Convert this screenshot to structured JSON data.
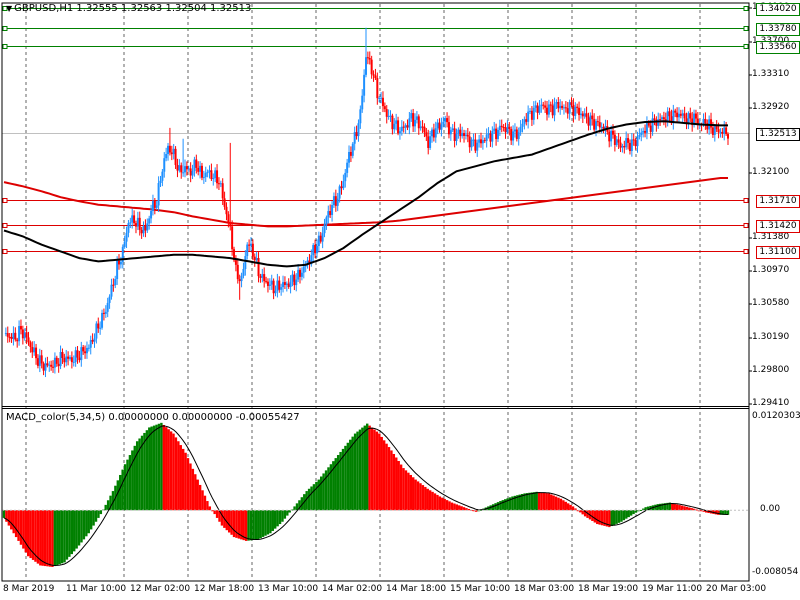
{
  "header": {
    "symbol_line": "GBPUSD,H1  1.32555 1.32563 1.32504 1.32513",
    "triangle_icon": "▼"
  },
  "macd": {
    "title": "MACD_color(5,34,5) 0.00000000 0.00000000 -0.00055427",
    "axis_labels": [
      {
        "text": "0.0120303",
        "value": 0.0120303
      },
      {
        "text": "0.00",
        "value": 0.0
      },
      {
        "text": "-0.008054",
        "value": -0.008054
      }
    ]
  },
  "price_axis_labels": [
    "1.34000",
    "1.33700",
    "1.33310",
    "1.32920",
    "1.32100",
    "1.31380",
    "1.30970",
    "1.30580",
    "1.30190",
    "1.29800",
    "1.29410"
  ],
  "horizontal_levels": [
    {
      "label": "1.34020",
      "price": 1.3402,
      "color": "#008000"
    },
    {
      "label": "1.33780",
      "price": 1.3378,
      "color": "#008000"
    },
    {
      "label": "1.33560",
      "price": 1.3356,
      "color": "#008000"
    },
    {
      "label": "1.31710",
      "price": 1.3171,
      "color": "#dd0000"
    },
    {
      "label": "1.31420",
      "price": 1.3142,
      "color": "#dd0000"
    },
    {
      "label": "1.31100",
      "price": 1.311,
      "color": "#dd0000"
    }
  ],
  "current_price": {
    "label": "1.32513",
    "price": 1.32513
  },
  "time_labels": [
    "8 Mar 2019",
    "11 Mar 10:00",
    "12 Mar 02:00",
    "12 Mar 18:00",
    "13 Mar 10:00",
    "14 Mar 02:00",
    "14 Mar 18:00",
    "15 Mar 10:00",
    "18 Mar 03:00",
    "18 Mar 19:00",
    "19 Mar 11:00",
    "20 Mar 03:00"
  ],
  "colors": {
    "bull": "#1e90ff",
    "bear": "#ff0000",
    "ma_fast": "#000000",
    "ma_slow": "#dd0000",
    "hist_up": "#008000",
    "hist_down": "#ff0000"
  },
  "chart_data": {
    "type": "candlestick",
    "symbol": "GBPUSD",
    "timeframe": "H1",
    "ylim": [
      1.2941,
      1.34
    ],
    "ohlc_keypoints": [
      [
        0,
        1.3012
      ],
      [
        3,
        1.3008
      ],
      [
        6,
        1.3006
      ],
      [
        9,
        1.3016
      ],
      [
        12,
        1.3006
      ],
      [
        15,
        1.2992
      ],
      [
        18,
        1.298
      ],
      [
        21,
        1.2973
      ],
      [
        24,
        1.2973
      ],
      [
        27,
        1.2975
      ],
      [
        30,
        1.2982
      ],
      [
        33,
        1.2982
      ],
      [
        36,
        1.298
      ],
      [
        39,
        1.2985
      ],
      [
        42,
        1.299
      ],
      [
        45,
        1.2995
      ],
      [
        48,
        1.301
      ],
      [
        51,
        1.3025
      ],
      [
        54,
        1.304
      ],
      [
        57,
        1.3065
      ],
      [
        60,
        1.309
      ],
      [
        63,
        1.311
      ],
      [
        66,
        1.3145
      ],
      [
        69,
        1.3148
      ],
      [
        72,
        1.3138
      ],
      [
        75,
        1.3135
      ],
      [
        78,
        1.316
      ],
      [
        81,
        1.317
      ],
      [
        84,
        1.321
      ],
      [
        87,
        1.3235
      ],
      [
        90,
        1.3225
      ],
      [
        93,
        1.3205
      ],
      [
        96,
        1.321
      ],
      [
        99,
        1.3205
      ],
      [
        102,
        1.3215
      ],
      [
        105,
        1.32
      ],
      [
        108,
        1.3205
      ],
      [
        111,
        1.32
      ],
      [
        114,
        1.3195
      ],
      [
        117,
        1.3165
      ],
      [
        120,
        1.3135
      ],
      [
        123,
        1.3085
      ],
      [
        126,
        1.3075
      ],
      [
        129,
        1.312
      ],
      [
        132,
        1.311
      ],
      [
        135,
        1.3085
      ],
      [
        138,
        1.3075
      ],
      [
        141,
        1.307
      ],
      [
        144,
        1.3065
      ],
      [
        147,
        1.307
      ],
      [
        150,
        1.307
      ],
      [
        153,
        1.3075
      ],
      [
        156,
        1.308
      ],
      [
        159,
        1.309
      ],
      [
        162,
        1.31
      ],
      [
        165,
        1.3115
      ],
      [
        168,
        1.3125
      ],
      [
        171,
        1.315
      ],
      [
        174,
        1.3165
      ],
      [
        177,
        1.3175
      ],
      [
        180,
        1.3195
      ],
      [
        183,
        1.3225
      ],
      [
        186,
        1.3245
      ],
      [
        189,
        1.3275
      ],
      [
        192,
        1.3345
      ],
      [
        195,
        1.333
      ],
      [
        198,
        1.33
      ],
      [
        201,
        1.3285
      ],
      [
        204,
        1.327
      ],
      [
        207,
        1.3262
      ],
      [
        210,
        1.3255
      ],
      [
        213,
        1.326
      ],
      [
        216,
        1.327
      ],
      [
        219,
        1.3265
      ],
      [
        222,
        1.3258
      ],
      [
        225,
        1.324
      ],
      [
        228,
        1.3255
      ],
      [
        231,
        1.326
      ],
      [
        234,
        1.3268
      ],
      [
        237,
        1.3252
      ],
      [
        240,
        1.325
      ],
      [
        243,
        1.3252
      ],
      [
        246,
        1.3245
      ],
      [
        249,
        1.3238
      ],
      [
        252,
        1.324
      ],
      [
        255,
        1.3245
      ],
      [
        258,
        1.325
      ],
      [
        261,
        1.3252
      ],
      [
        264,
        1.326
      ],
      [
        267,
        1.3255
      ],
      [
        270,
        1.325
      ],
      [
        273,
        1.3252
      ],
      [
        276,
        1.3268
      ],
      [
        279,
        1.3275
      ],
      [
        282,
        1.328
      ],
      [
        285,
        1.3285
      ],
      [
        288,
        1.328
      ],
      [
        291,
        1.3282
      ],
      [
        294,
        1.3286
      ],
      [
        297,
        1.328
      ],
      [
        300,
        1.3283
      ],
      [
        303,
        1.328
      ],
      [
        306,
        1.3275
      ],
      [
        309,
        1.327
      ],
      [
        312,
        1.3265
      ],
      [
        315,
        1.3262
      ],
      [
        318,
        1.3258
      ],
      [
        321,
        1.325
      ],
      [
        324,
        1.3245
      ],
      [
        327,
        1.3235
      ],
      [
        330,
        1.324
      ],
      [
        333,
        1.3238
      ],
      [
        336,
        1.3245
      ],
      [
        339,
        1.3255
      ],
      [
        342,
        1.326
      ],
      [
        345,
        1.3265
      ],
      [
        348,
        1.3268
      ],
      [
        351,
        1.327
      ],
      [
        354,
        1.3272
      ],
      [
        357,
        1.3275
      ],
      [
        360,
        1.3272
      ],
      [
        363,
        1.3268
      ],
      [
        366,
        1.327
      ],
      [
        369,
        1.3262
      ],
      [
        372,
        1.3265
      ],
      [
        375,
        1.3258
      ],
      [
        378,
        1.3255
      ],
      [
        381,
        1.3253
      ],
      [
        384,
        1.3252
      ]
    ],
    "ma_fast_keypoints": [
      [
        0,
        1.3135
      ],
      [
        10,
        1.3128
      ],
      [
        20,
        1.3118
      ],
      [
        30,
        1.311
      ],
      [
        40,
        1.3102
      ],
      [
        50,
        1.3098
      ],
      [
        60,
        1.31
      ],
      [
        70,
        1.3102
      ],
      [
        80,
        1.3104
      ],
      [
        90,
        1.3106
      ],
      [
        100,
        1.3106
      ],
      [
        110,
        1.3104
      ],
      [
        120,
        1.3102
      ],
      [
        130,
        1.3098
      ],
      [
        140,
        1.3094
      ],
      [
        150,
        1.3092
      ],
      [
        160,
        1.3094
      ],
      [
        170,
        1.3102
      ],
      [
        180,
        1.3114
      ],
      [
        190,
        1.313
      ],
      [
        200,
        1.3145
      ],
      [
        210,
        1.316
      ],
      [
        220,
        1.3175
      ],
      [
        230,
        1.3192
      ],
      [
        240,
        1.3206
      ],
      [
        250,
        1.3212
      ],
      [
        260,
        1.3218
      ],
      [
        270,
        1.3222
      ],
      [
        280,
        1.3226
      ],
      [
        290,
        1.3234
      ],
      [
        300,
        1.3242
      ],
      [
        310,
        1.325
      ],
      [
        320,
        1.3257
      ],
      [
        330,
        1.3262
      ],
      [
        340,
        1.3265
      ],
      [
        350,
        1.3266
      ],
      [
        360,
        1.3264
      ],
      [
        370,
        1.3262
      ],
      [
        380,
        1.3261
      ]
    ],
    "ma_slow_keypoints": [
      [
        0,
        1.3193
      ],
      [
        10,
        1.3188
      ],
      [
        20,
        1.3182
      ],
      [
        30,
        1.3175
      ],
      [
        40,
        1.317
      ],
      [
        50,
        1.3166
      ],
      [
        60,
        1.3164
      ],
      [
        70,
        1.3162
      ],
      [
        80,
        1.316
      ],
      [
        90,
        1.3157
      ],
      [
        100,
        1.3152
      ],
      [
        110,
        1.3148
      ],
      [
        120,
        1.3144
      ],
      [
        130,
        1.3142
      ],
      [
        140,
        1.314
      ],
      [
        150,
        1.314
      ],
      [
        160,
        1.3141
      ],
      [
        170,
        1.3142
      ],
      [
        180,
        1.3143
      ],
      [
        190,
        1.3144
      ],
      [
        200,
        1.3145
      ],
      [
        210,
        1.3147
      ],
      [
        220,
        1.315
      ],
      [
        230,
        1.3153
      ],
      [
        240,
        1.3156
      ],
      [
        250,
        1.3159
      ],
      [
        260,
        1.3162
      ],
      [
        270,
        1.3165
      ],
      [
        280,
        1.3168
      ],
      [
        290,
        1.3171
      ],
      [
        300,
        1.3174
      ],
      [
        310,
        1.3177
      ],
      [
        320,
        1.318
      ],
      [
        330,
        1.3183
      ],
      [
        340,
        1.3186
      ],
      [
        350,
        1.3189
      ],
      [
        360,
        1.3192
      ],
      [
        370,
        1.3195
      ],
      [
        380,
        1.3198
      ]
    ],
    "macd_keypoints": [
      [
        0,
        -0.001
      ],
      [
        5,
        -0.0035
      ],
      [
        10,
        -0.006
      ],
      [
        15,
        -0.0072
      ],
      [
        20,
        -0.0074
      ],
      [
        25,
        -0.0068
      ],
      [
        30,
        -0.005
      ],
      [
        35,
        -0.003
      ],
      [
        40,
        -0.0005
      ],
      [
        45,
        0.0025
      ],
      [
        50,
        0.006
      ],
      [
        55,
        0.009
      ],
      [
        60,
        0.0108
      ],
      [
        65,
        0.0114
      ],
      [
        70,
        0.01
      ],
      [
        75,
        0.0075
      ],
      [
        80,
        0.004
      ],
      [
        85,
        0.0005
      ],
      [
        90,
        -0.002
      ],
      [
        95,
        -0.0035
      ],
      [
        100,
        -0.004
      ],
      [
        105,
        -0.0038
      ],
      [
        110,
        -0.003
      ],
      [
        115,
        -0.0015
      ],
      [
        120,
        0.0005
      ],
      [
        125,
        0.0025
      ],
      [
        130,
        0.004
      ],
      [
        135,
        0.006
      ],
      [
        140,
        0.008
      ],
      [
        145,
        0.01
      ],
      [
        150,
        0.0113
      ],
      [
        155,
        0.01
      ],
      [
        160,
        0.0078
      ],
      [
        165,
        0.0055
      ],
      [
        170,
        0.004
      ],
      [
        175,
        0.0028
      ],
      [
        180,
        0.0018
      ],
      [
        185,
        0.001
      ],
      [
        190,
        0.0004
      ],
      [
        195,
        -0.0002
      ],
      [
        200,
        0.0005
      ],
      [
        205,
        0.0012
      ],
      [
        210,
        0.0018
      ],
      [
        215,
        0.0022
      ],
      [
        220,
        0.0024
      ],
      [
        225,
        0.0022
      ],
      [
        230,
        0.0015
      ],
      [
        235,
        0.0005
      ],
      [
        240,
        -0.0008
      ],
      [
        245,
        -0.0018
      ],
      [
        250,
        -0.0022
      ],
      [
        255,
        -0.0015
      ],
      [
        260,
        -0.0005
      ],
      [
        265,
        0.0004
      ],
      [
        270,
        0.0008
      ],
      [
        275,
        0.001
      ],
      [
        280,
        0.0006
      ],
      [
        285,
        0.0002
      ],
      [
        290,
        -0.0003
      ],
      [
        295,
        -0.0006
      ]
    ],
    "macd_ylim": [
      -0.008054,
      0.0120303
    ]
  }
}
